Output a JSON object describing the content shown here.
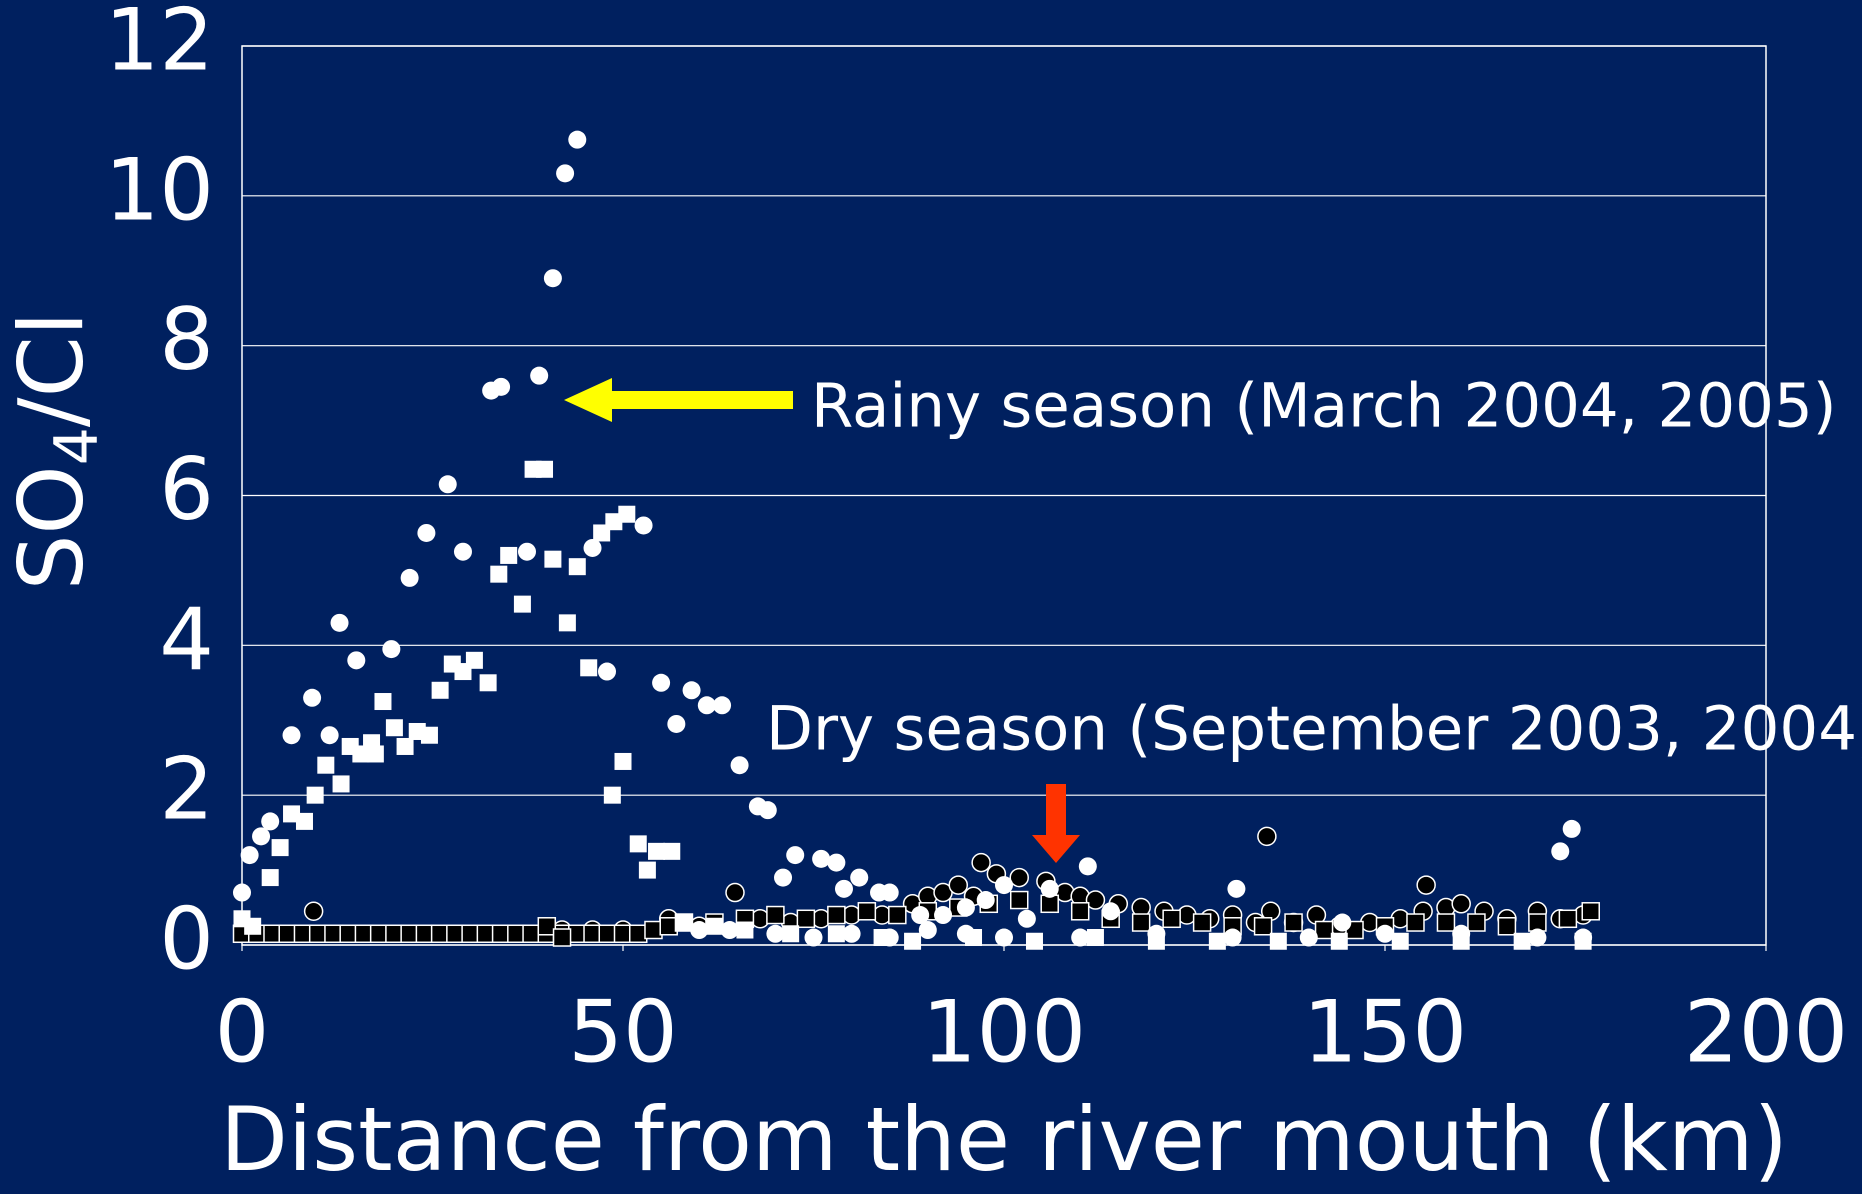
{
  "chart_data": {
    "type": "scatter",
    "xlabel": "Distance from the river mouth (km)",
    "ylabel": "SO4/Cl",
    "xlim": [
      0,
      200
    ],
    "xticks": [
      0,
      50,
      100,
      150,
      200
    ],
    "ylim": [
      0,
      12
    ],
    "yticks": [
      0,
      2,
      4,
      6,
      8,
      10,
      12
    ],
    "grid": true,
    "annotations": [
      {
        "text": "Rainy season (March 2004, 2005)",
        "color": "#ffff00"
      },
      {
        "text": "Dry season (September 2003, 2004)",
        "color": "#ff1a1a"
      }
    ],
    "series": [
      {
        "color": "#000000",
        "marker": "circle",
        "x": [
          9.4,
          42,
          46,
          50,
          56,
          60,
          64.7,
          68,
          72,
          76,
          80,
          84,
          88,
          90,
          92,
          94,
          96,
          97,
          99,
          102,
          105.5,
          108,
          110,
          112,
          115,
          118,
          121,
          124,
          127,
          130,
          133,
          134.5,
          135,
          138,
          141,
          144,
          148,
          152,
          155,
          155.4,
          158,
          160,
          163,
          166,
          170,
          173,
          176
        ],
        "values": [
          0.45,
          0.2,
          0.2,
          0.2,
          0.35,
          0.25,
          0.7,
          0.35,
          0.3,
          0.35,
          0.4,
          0.4,
          0.55,
          0.65,
          0.7,
          0.8,
          0.65,
          1.1,
          0.95,
          0.9,
          0.85,
          0.7,
          0.65,
          0.6,
          0.55,
          0.5,
          0.45,
          0.4,
          0.35,
          0.4,
          0.3,
          1.45,
          0.45,
          0.3,
          0.4,
          0.25,
          0.3,
          0.35,
          0.45,
          0.8,
          0.5,
          0.55,
          0.45,
          0.35,
          0.45,
          0.35,
          0.4
        ]
      },
      {
        "color": "#000000",
        "marker": "square",
        "x": [
          0,
          2,
          4,
          6,
          8,
          10,
          12,
          14,
          16,
          18,
          20,
          22,
          24,
          26,
          28,
          30,
          32,
          34,
          36,
          38,
          40,
          42,
          44,
          46,
          48,
          50,
          52,
          40,
          42,
          54,
          56,
          58,
          62,
          66,
          70,
          74,
          78,
          82,
          86,
          90,
          94,
          98,
          102,
          106,
          110,
          114,
          118,
          122,
          126,
          130,
          134,
          138,
          142,
          146,
          150,
          154,
          158,
          162,
          166,
          170,
          174,
          177
        ],
        "values": [
          0.15,
          0.15,
          0.15,
          0.15,
          0.15,
          0.15,
          0.15,
          0.15,
          0.15,
          0.15,
          0.15,
          0.15,
          0.15,
          0.15,
          0.15,
          0.15,
          0.15,
          0.15,
          0.15,
          0.15,
          0.15,
          0.15,
          0.15,
          0.15,
          0.15,
          0.15,
          0.15,
          0.25,
          0.1,
          0.2,
          0.25,
          0.3,
          0.3,
          0.35,
          0.4,
          0.35,
          0.4,
          0.45,
          0.4,
          0.45,
          0.5,
          0.55,
          0.6,
          0.55,
          0.45,
          0.35,
          0.3,
          0.35,
          0.3,
          0.25,
          0.25,
          0.3,
          0.2,
          0.2,
          0.25,
          0.3,
          0.3,
          0.3,
          0.25,
          0.3,
          0.35,
          0.45
        ]
      },
      {
        "color": "#ffffff",
        "marker": "circle",
        "x": [
          0,
          1,
          2.5,
          3.7,
          6.5,
          9.2,
          11.5,
          12.8,
          15,
          19.6,
          22,
          24.2,
          27,
          29,
          32.7,
          34,
          37.4,
          39,
          40.8,
          42.4,
          44,
          46,
          47.9,
          52.7,
          55,
          57,
          59,
          61,
          63,
          65.3,
          67.7,
          69,
          71,
          72.6,
          76,
          78,
          81,
          79,
          83.6,
          85,
          89,
          92,
          95,
          97.6,
          100,
          103,
          106,
          111,
          114,
          130.5,
          144.4,
          173,
          174.5,
          60,
          64,
          70,
          75,
          80,
          85,
          90,
          95,
          100,
          110,
          120,
          130,
          140,
          150,
          160,
          170,
          176
        ],
        "values": [
          0.7,
          1.2,
          1.45,
          1.65,
          2.8,
          3.3,
          2.8,
          4.3,
          3.8,
          3.95,
          4.9,
          5.5,
          6.15,
          5.25,
          7.4,
          7.45,
          5.25,
          7.6,
          8.9,
          10.3,
          10.75,
          5.3,
          3.65,
          5.6,
          3.5,
          2.95,
          3.4,
          3.2,
          3.2,
          2.4,
          1.85,
          1.8,
          0.9,
          1.2,
          1.15,
          1.1,
          0.9,
          0.75,
          0.7,
          0.7,
          0.4,
          0.4,
          0.5,
          0.6,
          0.8,
          0.35,
          0.75,
          1.05,
          0.45,
          0.75,
          0.3,
          1.25,
          1.55,
          0.2,
          0.2,
          0.15,
          0.1,
          0.15,
          0.1,
          0.2,
          0.15,
          0.1,
          0.1,
          0.15,
          0.1,
          0.1,
          0.15,
          0.15,
          0.1,
          0.1
        ]
      },
      {
        "color": "#ffffff",
        "marker": "square",
        "x": [
          0,
          1.4,
          3.7,
          5,
          6.5,
          8.2,
          9.6,
          11,
          13,
          14.2,
          15.6,
          17,
          17.5,
          18.5,
          20,
          21.4,
          23,
          24.6,
          26,
          27.6,
          29,
          30.5,
          32.3,
          33.7,
          35,
          36.8,
          38.2,
          39.7,
          40.8,
          42.7,
          44,
          45.5,
          47.2,
          48.8,
          50.5,
          48.6,
          50,
          52,
          53.2,
          54.4,
          56.4,
          58,
          62,
          66,
          72,
          78,
          84,
          88,
          96,
          104,
          112,
          120,
          128,
          136,
          144,
          152,
          160,
          168,
          176
        ],
        "values": [
          0.35,
          0.25,
          0.9,
          1.3,
          1.75,
          1.65,
          2.0,
          2.4,
          2.15,
          2.65,
          2.55,
          2.7,
          2.55,
          3.25,
          2.9,
          2.65,
          2.85,
          2.8,
          3.4,
          3.75,
          3.65,
          3.8,
          3.5,
          4.95,
          5.2,
          4.55,
          6.35,
          6.35,
          5.15,
          4.3,
          5.05,
          3.7,
          5.5,
          5.65,
          5.75,
          2.0,
          2.45,
          1.35,
          1.0,
          1.25,
          1.25,
          0.3,
          0.25,
          0.2,
          0.15,
          0.15,
          0.1,
          0.05,
          0.1,
          0.05,
          0.1,
          0.05,
          0.05,
          0.05,
          0.05,
          0.05,
          0.05,
          0.05,
          0.05
        ]
      }
    ]
  }
}
